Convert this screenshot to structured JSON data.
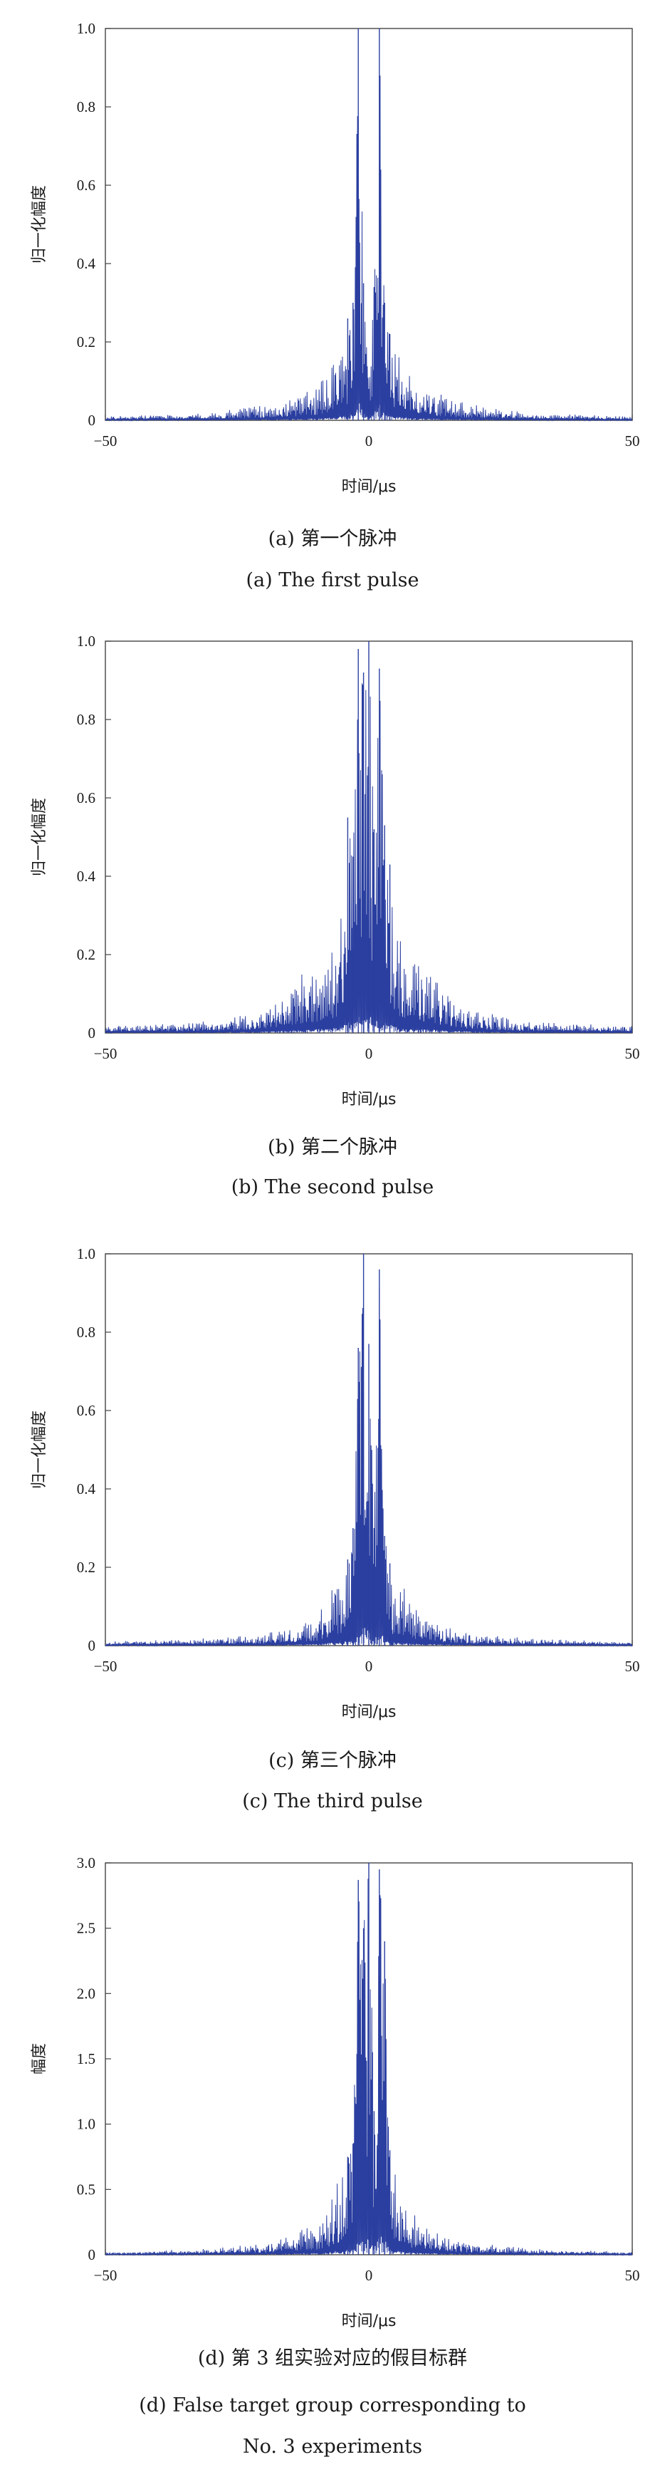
{
  "chart_data": [
    {
      "type": "line",
      "xlabel": "时间/μs",
      "ylabel": "归一化幅度",
      "xlim": [
        -50,
        50
      ],
      "ylim": [
        0,
        1.0
      ],
      "xticks": [
        "-50",
        "0",
        "50"
      ],
      "yticks": [
        "0",
        "0.2",
        "0.4",
        "0.6",
        "0.8",
        "1.0"
      ],
      "caption_cn": "(a) 第一个脉冲",
      "caption_en": "(a) The first pulse",
      "series": [
        {
          "color": "#2b3fa0",
          "x": [
            -50,
            -30,
            -20,
            -15,
            -10,
            -8,
            -6,
            -4,
            -3,
            -2,
            -1,
            0,
            1,
            2,
            3,
            4,
            6,
            8,
            10,
            15,
            20,
            30,
            50
          ],
          "y": [
            0.01,
            0.02,
            0.04,
            0.06,
            0.09,
            0.12,
            0.22,
            0.26,
            0.3,
            1.0,
            0.35,
            0.08,
            0.34,
            1.0,
            0.3,
            0.22,
            0.18,
            0.12,
            0.09,
            0.06,
            0.04,
            0.02,
            0.01
          ]
        }
      ]
    },
    {
      "type": "line",
      "xlabel": "时间/μs",
      "ylabel": "归一化幅度",
      "xlim": [
        -50,
        50
      ],
      "ylim": [
        0,
        1.0
      ],
      "xticks": [
        "-50",
        "0",
        "50"
      ],
      "yticks": [
        "0",
        "0.2",
        "0.4",
        "0.6",
        "0.8",
        "1.0"
      ],
      "caption_cn": "(b) 第二个脉冲",
      "caption_en": "(b) The second pulse",
      "series": [
        {
          "color": "#2b3fa0",
          "x": [
            -50,
            -30,
            -20,
            -15,
            -10,
            -8,
            -6,
            -4,
            -3,
            -2,
            -1,
            0,
            1,
            2,
            3,
            4,
            6,
            8,
            10,
            15,
            20,
            30,
            50
          ],
          "y": [
            0.02,
            0.03,
            0.06,
            0.12,
            0.19,
            0.21,
            0.28,
            0.55,
            0.45,
            0.98,
            0.92,
            1.0,
            0.52,
            0.93,
            0.53,
            0.43,
            0.25,
            0.2,
            0.19,
            0.12,
            0.06,
            0.03,
            0.02
          ]
        }
      ]
    },
    {
      "type": "line",
      "xlabel": "时间/μs",
      "ylabel": "归一化幅度",
      "xlim": [
        -50,
        50
      ],
      "ylim": [
        0,
        1.0
      ],
      "xticks": [
        "-50",
        "0",
        "50"
      ],
      "yticks": [
        "0",
        "0.2",
        "0.4",
        "0.6",
        "0.8",
        "1.0"
      ],
      "caption_cn": "(c) 第三个脉冲",
      "caption_en": "(c) The third pulse",
      "series": [
        {
          "color": "#2b3fa0",
          "x": [
            -50,
            -30,
            -20,
            -15,
            -10,
            -8,
            -6,
            -4,
            -3,
            -2,
            -1,
            0,
            1,
            2,
            3,
            4,
            6,
            8,
            10,
            15,
            20,
            30,
            50
          ],
          "y": [
            0.01,
            0.02,
            0.03,
            0.05,
            0.08,
            0.12,
            0.2,
            0.22,
            0.3,
            0.76,
            1.0,
            0.77,
            0.3,
            0.96,
            0.28,
            0.21,
            0.16,
            0.12,
            0.08,
            0.05,
            0.03,
            0.02,
            0.01
          ]
        }
      ]
    },
    {
      "type": "line",
      "xlabel": "时间/μs",
      "ylabel": "幅度",
      "xlim": [
        -50,
        50
      ],
      "ylim": [
        0,
        3.0
      ],
      "xticks": [
        "-50",
        "0",
        "50"
      ],
      "yticks": [
        "0",
        "0.5",
        "1.0",
        "1.5",
        "2.0",
        "2.5",
        "3.0"
      ],
      "caption_cn": "(d) 第 3 组实验对应的假目标群",
      "caption_en": "(d) False target group corresponding to",
      "caption_en2": "No. 3 experiments",
      "series": [
        {
          "color": "#2b3fa0",
          "x": [
            -50,
            -30,
            -20,
            -15,
            -10,
            -8,
            -6,
            -4,
            -3,
            -2,
            -1,
            0,
            1,
            2,
            3,
            4,
            6,
            8,
            10,
            15,
            20,
            30,
            50
          ],
          "y": [
            0.02,
            0.05,
            0.09,
            0.16,
            0.25,
            0.36,
            0.55,
            0.75,
            0.85,
            2.87,
            2.5,
            3.0,
            1.1,
            2.95,
            2.4,
            0.8,
            0.48,
            0.36,
            0.25,
            0.16,
            0.09,
            0.05,
            0.02
          ]
        }
      ]
    }
  ]
}
